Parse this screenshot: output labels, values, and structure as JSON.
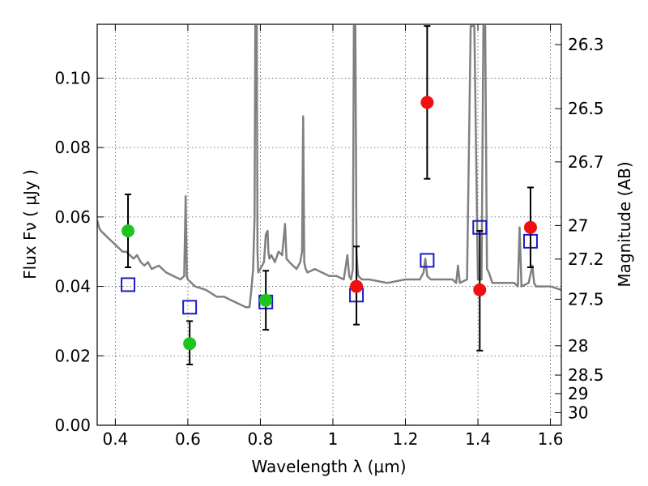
{
  "chart_data": {
    "type": "scatter",
    "xlabel": "Wavelength  λ (μm)",
    "ylabel": "Flux  Fν  ( μJy )",
    "y2label": "Magnitude (AB)",
    "xlim": [
      0.35,
      1.63
    ],
    "ylim": [
      0.0,
      0.1155
    ],
    "grid": true,
    "x_ticks": [
      0.4,
      0.6,
      0.8,
      1.0,
      1.2,
      1.4,
      1.6
    ],
    "x_tick_labels": [
      "0.4",
      "0.6",
      "0.8",
      "1",
      "1.2",
      "1.4",
      "1.6"
    ],
    "y_ticks": [
      0.0,
      0.02,
      0.04,
      0.06,
      0.08,
      0.1
    ],
    "y_tick_labels": [
      "0.00",
      "0.02",
      "0.04",
      "0.06",
      "0.08",
      "0.10"
    ],
    "mag_ticks": [
      26.3,
      26.5,
      26.7,
      27,
      27.2,
      27.5,
      28,
      28.5,
      29,
      30
    ],
    "mag_tick_labels": [
      "26.3",
      "26.5",
      "26.7",
      "27",
      "27.2",
      "27.5",
      "28",
      "28.5",
      "29",
      "30"
    ],
    "colors": {
      "spectrum": "#808080",
      "green_points": "#1ec41e",
      "red_points": "#f01010",
      "model_boxes": "#1a1acc",
      "error_bars": "#000000",
      "grid": "#555555"
    },
    "series": [
      {
        "name": "Model spectrum",
        "kind": "line",
        "x": [
          0.35,
          0.355,
          0.36,
          0.37,
          0.38,
          0.39,
          0.4,
          0.41,
          0.42,
          0.43,
          0.44,
          0.45,
          0.46,
          0.47,
          0.48,
          0.49,
          0.5,
          0.52,
          0.54,
          0.56,
          0.58,
          0.59,
          0.594,
          0.597,
          0.6,
          0.62,
          0.65,
          0.68,
          0.7,
          0.72,
          0.74,
          0.76,
          0.77,
          0.775,
          0.78,
          0.784,
          0.786,
          0.79,
          0.792,
          0.794,
          0.8,
          0.81,
          0.815,
          0.82,
          0.822,
          0.825,
          0.83,
          0.84,
          0.85,
          0.86,
          0.868,
          0.872,
          0.88,
          0.89,
          0.9,
          0.91,
          0.915,
          0.918,
          0.921,
          0.925,
          0.93,
          0.95,
          0.97,
          0.99,
          1.01,
          1.03,
          1.04,
          1.045,
          1.05,
          1.055,
          1.058,
          1.062,
          1.065,
          1.068,
          1.07,
          1.08,
          1.1,
          1.15,
          1.2,
          1.24,
          1.25,
          1.255,
          1.26,
          1.27,
          1.3,
          1.33,
          1.34,
          1.345,
          1.35,
          1.37,
          1.38,
          1.39,
          1.4,
          1.41,
          1.415,
          1.42,
          1.425,
          1.43,
          1.44,
          1.46,
          1.5,
          1.51,
          1.515,
          1.52,
          1.54,
          1.55,
          1.555,
          1.56,
          1.6,
          1.63
        ],
        "values": [
          0.059,
          0.057,
          0.056,
          0.055,
          0.054,
          0.053,
          0.052,
          0.051,
          0.05,
          0.05,
          0.049,
          0.048,
          0.049,
          0.047,
          0.046,
          0.047,
          0.045,
          0.046,
          0.044,
          0.043,
          0.042,
          0.043,
          0.066,
          0.043,
          0.042,
          0.04,
          0.039,
          0.037,
          0.037,
          0.036,
          0.035,
          0.034,
          0.034,
          0.039,
          0.045,
          0.06,
          0.115,
          0.115,
          0.05,
          0.044,
          0.045,
          0.047,
          0.055,
          0.056,
          0.05,
          0.048,
          0.049,
          0.047,
          0.05,
          0.049,
          0.058,
          0.048,
          0.047,
          0.046,
          0.045,
          0.047,
          0.05,
          0.089,
          0.047,
          0.045,
          0.044,
          0.045,
          0.044,
          0.043,
          0.043,
          0.042,
          0.049,
          0.043,
          0.042,
          0.045,
          0.115,
          0.115,
          0.05,
          0.045,
          0.043,
          0.042,
          0.042,
          0.041,
          0.042,
          0.042,
          0.044,
          0.048,
          0.043,
          0.042,
          0.042,
          0.042,
          0.041,
          0.046,
          0.041,
          0.042,
          0.115,
          0.115,
          0.042,
          0.042,
          0.115,
          0.115,
          0.045,
          0.044,
          0.041,
          0.041,
          0.041,
          0.04,
          0.057,
          0.04,
          0.041,
          0.046,
          0.041,
          0.04,
          0.04,
          0.039
        ]
      },
      {
        "name": "Green photometry",
        "kind": "points",
        "x": [
          0.435,
          0.605,
          0.815
        ],
        "values": [
          0.056,
          0.0235,
          0.036
        ],
        "err_low": [
          0.0105,
          0.006,
          0.0085
        ],
        "err_high": [
          0.0105,
          0.0065,
          0.0085
        ]
      },
      {
        "name": "Red photometry",
        "kind": "points",
        "x": [
          1.065,
          1.26,
          1.405,
          1.545
        ],
        "values": [
          0.04,
          0.093,
          0.039,
          0.057
        ],
        "err_low": [
          0.011,
          0.022,
          0.0175,
          0.0115
        ],
        "err_high": [
          0.0115,
          0.022,
          0.017,
          0.0115
        ]
      },
      {
        "name": "Model photometry",
        "kind": "boxes",
        "x": [
          0.435,
          0.605,
          0.815,
          1.065,
          1.26,
          1.405,
          1.545
        ],
        "values": [
          0.0405,
          0.034,
          0.0355,
          0.0375,
          0.0475,
          0.057,
          0.053
        ]
      }
    ]
  }
}
